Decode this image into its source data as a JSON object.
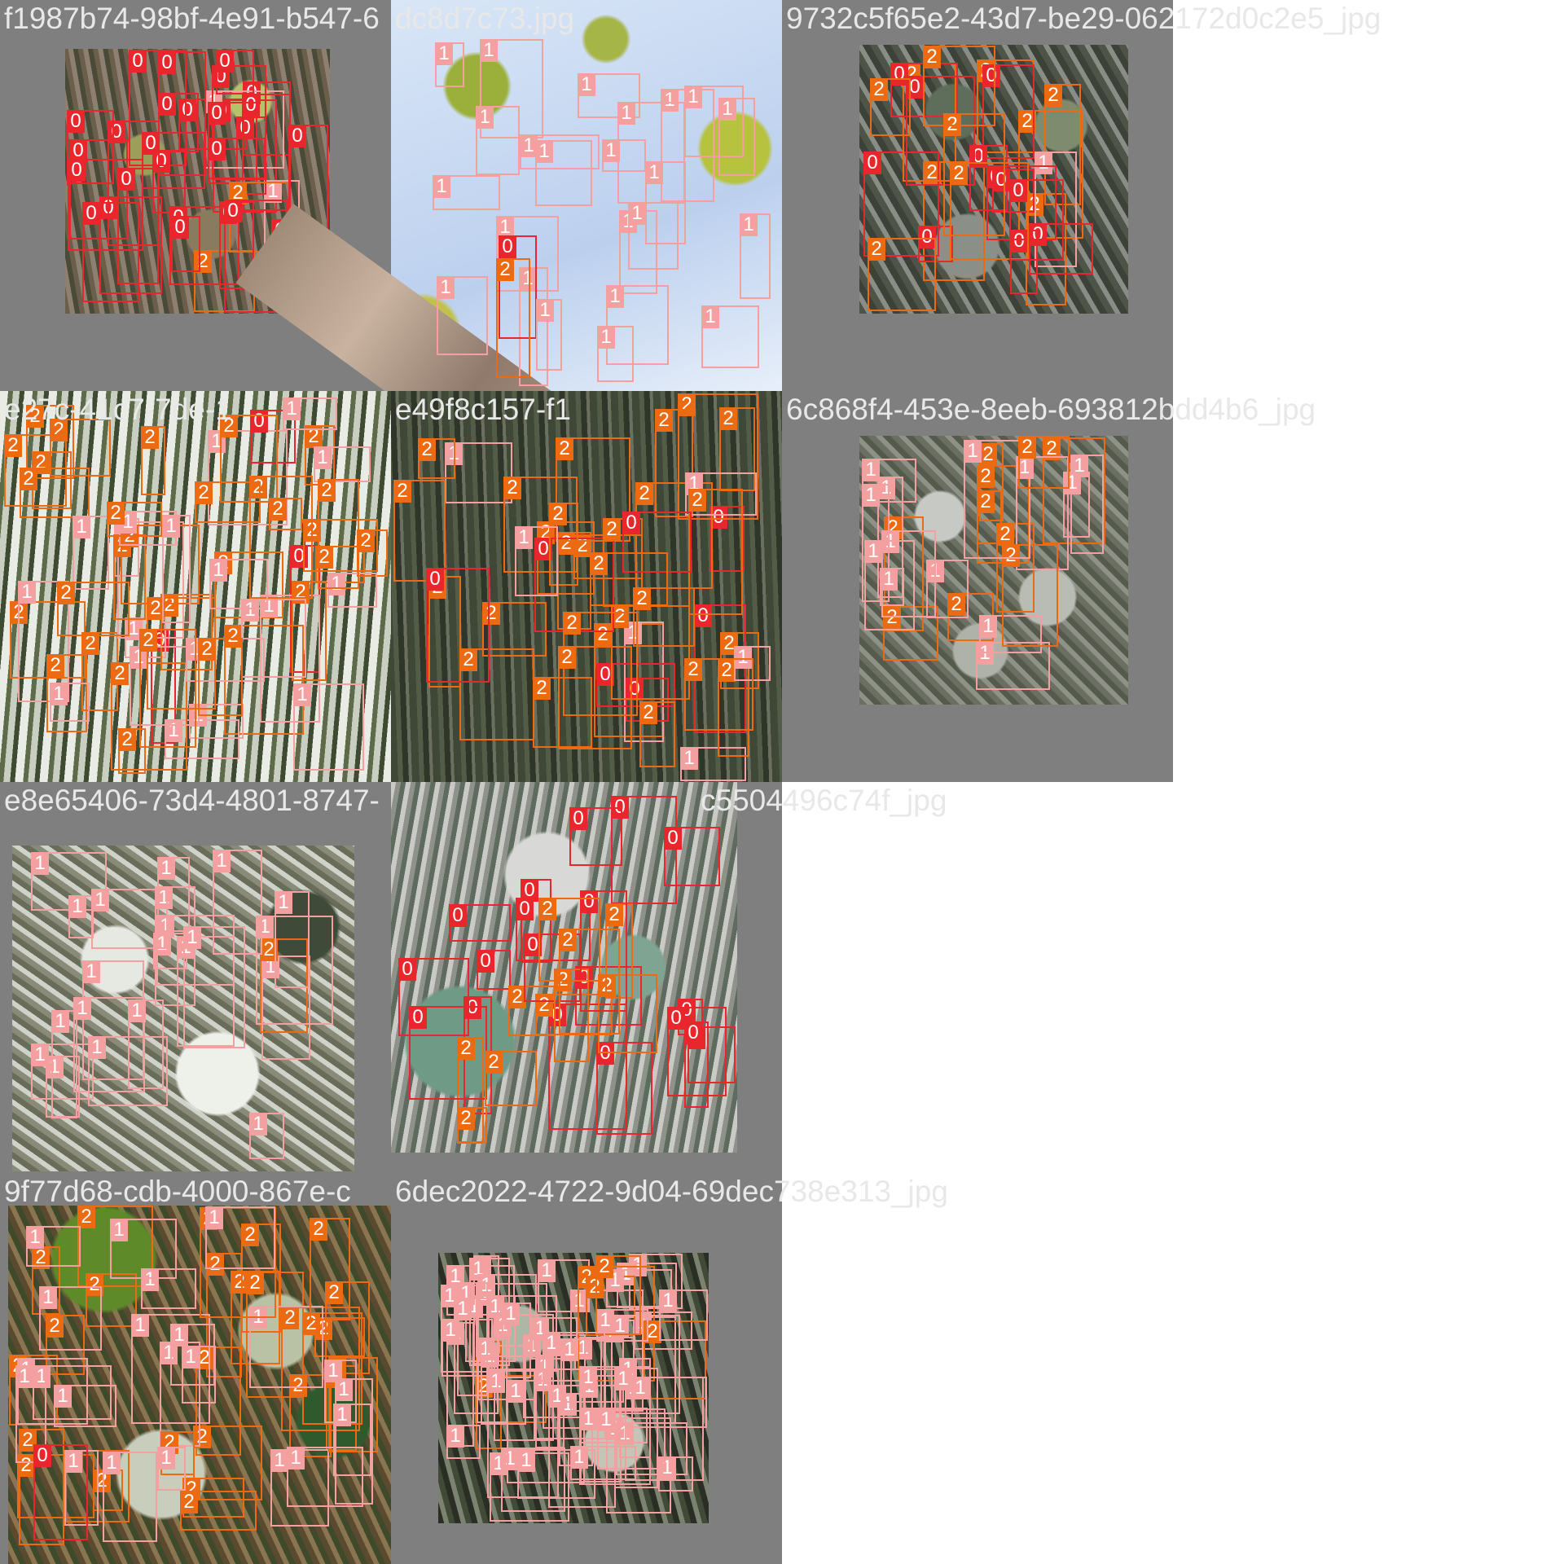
{
  "class_colors": {
    "0": "#e8262b",
    "1": "#f5a0a0",
    "2": "#ec6a12"
  },
  "tiles": [
    {
      "caption": "f1987b74-98bf-4e91-b547-6",
      "labels": [
        2,
        0,
        0,
        0,
        1,
        0,
        0,
        0,
        0,
        1,
        0,
        0,
        0,
        0,
        0,
        0,
        0,
        0,
        0,
        0,
        0,
        0,
        2,
        0,
        0,
        0,
        0,
        0,
        0,
        0,
        0
      ]
    },
    {
      "caption": "dc8d7c73.jpg",
      "labels": [
        1,
        1,
        1,
        1,
        1,
        1,
        1,
        1,
        1,
        1,
        1,
        1,
        1,
        1,
        0,
        1,
        1,
        1,
        1,
        1,
        1,
        1,
        1,
        1,
        2
      ]
    },
    {
      "caption": "9732c5f65e2-43d7-be29-062172d0c2e5_jpg",
      "labels": [
        2,
        2,
        2,
        0,
        2,
        2,
        2,
        1,
        0,
        0,
        0,
        0,
        0,
        0,
        0,
        0,
        2,
        0,
        2,
        2,
        0,
        2,
        2
      ]
    },
    {
      "caption": "e27c-41c7-7de-1",
      "labels": [
        0,
        2,
        1,
        2,
        2,
        2,
        2,
        1,
        0,
        0,
        2,
        2,
        2,
        2,
        1,
        2,
        2,
        2,
        1,
        2,
        1,
        2,
        2,
        1,
        2,
        1,
        1,
        2,
        1,
        2,
        1,
        1,
        2,
        1,
        2,
        2,
        1,
        1,
        2,
        2,
        1,
        2,
        1,
        2,
        2,
        1,
        1,
        2,
        2,
        1,
        2,
        1,
        2,
        2
      ]
    },
    {
      "caption": "e49f8c157-f1",
      "labels": [
        2,
        2,
        2,
        2,
        1,
        1,
        1,
        0,
        2,
        2,
        2,
        0,
        2,
        0,
        2,
        2,
        0,
        2,
        2,
        2,
        2,
        2,
        0,
        2,
        2,
        2,
        2,
        2,
        0,
        2,
        1,
        1,
        2,
        2,
        2,
        0,
        2,
        2,
        1,
        2,
        2
      ]
    },
    {
      "caption": "6c868f4-453e-8eeb-693812bdd4b6_jpg",
      "labels": [
        2,
        2,
        2,
        2,
        2,
        2,
        2,
        2,
        1,
        1,
        1,
        1,
        1,
        1,
        1,
        1,
        1,
        1,
        2,
        1,
        1,
        2,
        1
      ]
    },
    {
      "caption": "e8e65406-73d4-4801-8747-",
      "labels": [
        1,
        1,
        1,
        1,
        1,
        2,
        1,
        1,
        1,
        1,
        1,
        1,
        1,
        1,
        1,
        1,
        1,
        1,
        1,
        1,
        1,
        1
      ]
    },
    {
      "caption": "c5504496c74f_jpg",
      "labels": [
        0,
        0,
        0,
        0,
        0,
        0,
        0,
        0,
        0,
        0,
        0,
        0,
        0,
        2,
        2,
        0,
        2,
        0,
        2,
        2,
        2,
        2,
        0,
        0,
        0,
        0,
        2,
        2,
        2
      ]
    },
    {
      "caption": "9f77d68-cdb-4000-867e-c",
      "labels": [
        2,
        2,
        2,
        2,
        2,
        2,
        2,
        2,
        2,
        2,
        2,
        2,
        2,
        2,
        2,
        2,
        2,
        2,
        2,
        2,
        2,
        2,
        1,
        1,
        2,
        2,
        1,
        1,
        2,
        1,
        1,
        1,
        2,
        1,
        1,
        1,
        1,
        1,
        1,
        1,
        1,
        1,
        2,
        1,
        1,
        1,
        1,
        1,
        0,
        1
      ]
    },
    {
      "caption": "6dec2022-4722-9d04-69dec738e313_jpg",
      "labels": [
        1,
        1,
        1,
        1,
        1,
        1,
        1,
        1,
        2,
        1,
        1,
        2,
        1,
        1,
        1,
        1,
        1,
        1,
        1,
        1,
        1,
        1,
        1,
        1,
        1,
        1,
        1,
        2,
        1,
        1,
        1,
        1,
        2,
        1,
        1,
        1,
        1,
        2,
        1,
        1,
        1,
        1,
        1,
        1,
        1,
        1,
        1,
        1,
        2,
        1,
        1,
        1,
        1,
        1,
        1,
        1,
        1,
        1,
        1,
        1
      ]
    }
  ]
}
